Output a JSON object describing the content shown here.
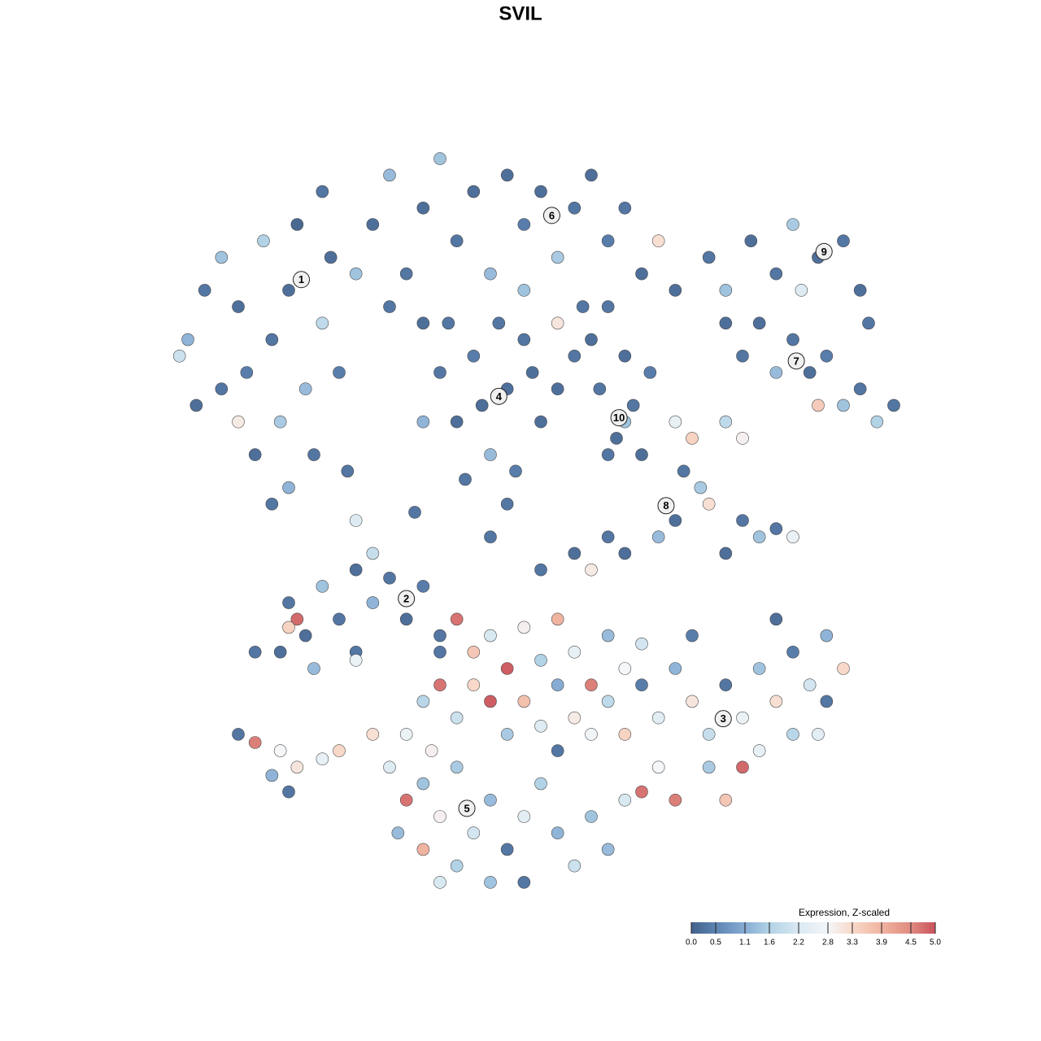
{
  "chart_data": {
    "type": "scatter",
    "title": "SVIL",
    "xlim": [
      -45,
      45
    ],
    "ylim": [
      -45,
      45
    ],
    "x": [
      -42,
      -40,
      -38,
      -36,
      -35,
      -33,
      -32,
      -31,
      -30,
      -29,
      -28,
      -27,
      -26,
      -25,
      -24,
      -23,
      -34,
      -30,
      -38,
      -41,
      -43,
      -26,
      -22,
      -36,
      -32,
      -20,
      -18,
      -16,
      -14,
      -12,
      -10,
      -8,
      -6,
      -4,
      -2,
      0,
      2,
      4,
      6,
      8,
      10,
      12,
      14,
      5,
      -2,
      -14,
      -18,
      2,
      8,
      16,
      -12,
      -10,
      -8,
      -6,
      -4,
      -2,
      0,
      -3,
      -9,
      -14,
      -1,
      -5,
      2,
      -7,
      -11,
      4,
      6,
      -4,
      7,
      9,
      11,
      10,
      13,
      8,
      12,
      10,
      20,
      22,
      25,
      28,
      30,
      33,
      36,
      38,
      39,
      31,
      24,
      26,
      28,
      30,
      32,
      34,
      36,
      38,
      40,
      42,
      33,
      22,
      16,
      18,
      22,
      24,
      17,
      19,
      16,
      20,
      24,
      26,
      28,
      30,
      22,
      14,
      8,
      4,
      0,
      6,
      10,
      -6,
      -30,
      -28,
      -26,
      -24,
      -22,
      -20,
      -18,
      -16,
      -14,
      -12,
      -27,
      -31,
      -22,
      -29,
      -30,
      -22,
      -34,
      -20,
      -10,
      -8,
      -6,
      -4,
      -2,
      0,
      2,
      4,
      6,
      8,
      10,
      -12,
      -10,
      -8,
      -6,
      -4,
      -2,
      0,
      2,
      4,
      6,
      8,
      10,
      12,
      12,
      -12,
      14,
      -14,
      -13,
      16,
      18,
      20,
      22,
      24,
      26,
      28,
      30,
      32,
      34,
      36,
      24,
      26,
      20,
      22,
      14,
      16,
      30,
      34,
      28,
      33,
      18,
      12,
      -18,
      -16,
      -14,
      -12,
      -10,
      -8,
      -6,
      -4,
      -2,
      0,
      2,
      4,
      6,
      -10,
      -14,
      -12,
      -6,
      -2,
      8,
      10,
      -16,
      -20,
      -17,
      2,
      -36,
      -34,
      -31,
      -29,
      -26,
      -32,
      -24,
      -30,
      -22,
      -15
    ],
    "y": [
      22,
      28,
      32,
      26,
      18,
      34,
      22,
      12,
      28,
      36,
      16,
      8,
      24,
      32,
      18,
      6,
      8,
      4,
      16,
      14,
      20,
      40,
      30,
      12,
      2,
      36,
      42,
      30,
      38,
      44,
      34,
      40,
      30,
      42,
      36,
      40,
      32,
      38,
      42,
      34,
      38,
      30,
      34,
      26,
      28,
      24,
      26,
      24,
      26,
      28,
      18,
      12,
      20,
      8,
      16,
      22,
      12,
      6,
      5,
      12,
      18,
      24,
      16,
      14,
      24,
      20,
      22,
      2,
      16,
      10,
      14,
      20,
      18,
      8,
      8,
      12,
      32,
      28,
      34,
      30,
      36,
      32,
      34,
      28,
      24,
      28,
      20,
      24,
      18,
      22,
      18,
      20,
      14,
      16,
      12,
      14,
      14,
      24,
      12,
      10,
      12,
      10,
      6,
      4,
      0,
      2,
      0,
      -2,
      -1,
      -2,
      -4,
      -2,
      -2,
      -4,
      -6,
      -6,
      -4,
      -2,
      -10,
      -14,
      -8,
      -12,
      -6,
      -10,
      -7,
      -12,
      -8,
      -14,
      -18,
      -16,
      -16,
      -12,
      -13,
      -17,
      -16,
      -4,
      -12,
      -16,
      -14,
      -18,
      -13,
      -17,
      -12,
      -16,
      -20,
      -14,
      -18,
      -20,
      -24,
      -20,
      -22,
      -26,
      -22,
      -25,
      -20,
      -24,
      -26,
      -22,
      -26,
      -20,
      -15,
      -16,
      -24,
      -22,
      -28,
      -18,
      -22,
      -26,
      -20,
      -24,
      -18,
      -22,
      -16,
      -20,
      -14,
      -18,
      -30,
      -28,
      -30,
      -34,
      -30,
      -34,
      -26,
      -22,
      -12,
      -26,
      -14,
      -33,
      -30,
      -34,
      -32,
      -36,
      -30,
      -38,
      -34,
      -40,
      -36,
      -32,
      -38,
      -42,
      -36,
      -42,
      -40,
      -44,
      -44,
      -44,
      -40,
      -34,
      -26,
      -26,
      -38,
      -28,
      -26,
      -27,
      -28,
      -30,
      -29,
      -31,
      -28,
      -33,
      0,
      1
    ],
    "values": [
      1.2,
      0.3,
      1.4,
      0.2,
      0.4,
      1.6,
      0.3,
      1.5,
      0.2,
      0.1,
      1.3,
      0.3,
      1.8,
      0.2,
      0.4,
      0.3,
      0.2,
      1.2,
      0.3,
      0.2,
      2.0,
      0.3,
      1.4,
      3.0,
      0.3,
      0.2,
      1.3,
      0.3,
      0.2,
      1.4,
      0.3,
      0.2,
      1.3,
      0.2,
      0.4,
      0.2,
      1.5,
      0.3,
      0.2,
      0.4,
      0.3,
      0.2,
      3.2,
      0.3,
      1.4,
      0.2,
      0.3,
      3.1,
      0.3,
      0.2,
      0.3,
      0.2,
      0.4,
      1.3,
      0.2,
      0.3,
      0.2,
      0.4,
      0.3,
      1.2,
      0.2,
      0.3,
      0.2,
      0.2,
      0.3,
      0.3,
      0.2,
      0.3,
      0.3,
      0.2,
      0.3,
      0.2,
      0.4,
      0.3,
      0.2,
      1.4,
      0.3,
      1.4,
      0.2,
      0.3,
      1.5,
      0.2,
      0.3,
      0.2,
      0.3,
      2.3,
      0.3,
      0.2,
      1.3,
      0.3,
      0.2,
      0.4,
      1.4,
      0.3,
      1.6,
      0.3,
      3.5,
      0.2,
      2.5,
      3.4,
      1.8,
      2.9,
      0.3,
      1.5,
      0.2,
      3.2,
      0.3,
      1.4,
      0.3,
      2.6,
      0.2,
      1.3,
      0.3,
      0.2,
      0.3,
      3.0,
      0.2,
      0.3,
      0.3,
      0.2,
      1.4,
      0.3,
      0.2,
      1.2,
      0.3,
      0.2,
      0.4,
      0.3,
      1.3,
      0.2,
      0.3,
      4.8,
      3.4,
      2.6,
      0.3,
      1.9,
      4.7,
      3.6,
      2.2,
      4.9,
      2.9,
      1.6,
      3.9,
      2.5,
      4.6,
      1.3,
      2.8,
      4.7,
      2.0,
      3.3,
      4.9,
      1.5,
      3.7,
      2.3,
      1.1,
      3.0,
      2.7,
      1.8,
      3.4,
      0.4,
      2.1,
      0.3,
      2.4,
      1.7,
      2.9,
      1.2,
      3.1,
      1.9,
      0.3,
      2.6,
      1.4,
      3.2,
      0.4,
      2.1,
      1.2,
      3.3,
      4.8,
      2.5,
      1.5,
      3.6,
      2.8,
      4.6,
      1.7,
      0.3,
      0.2,
      2.4,
      0.4,
      4.7,
      2.3,
      4.7,
      1.4,
      2.9,
      1.5,
      2.1,
      1.3,
      0.3,
      2.4,
      1.6,
      1.2,
      2.0,
      1.4,
      1.6,
      3.9,
      2.2,
      1.4,
      0.3,
      1.3,
      2.2,
      2.6,
      3.2,
      1.3,
      0.3,
      0.3,
      4.6,
      2.8,
      3.1,
      2.5,
      1.2,
      3.3,
      0.3,
      2.3,
      0.3
    ],
    "annotations": [
      {
        "text": "1",
        "x": -28.5,
        "y": 29.3
      },
      {
        "text": "6",
        "x": 1.3,
        "y": 37.1
      },
      {
        "text": "9",
        "x": 33.7,
        "y": 32.7
      },
      {
        "text": "7",
        "x": 30.4,
        "y": 19.4
      },
      {
        "text": "4",
        "x": -5,
        "y": 15.1
      },
      {
        "text": "10",
        "x": 9.3,
        "y": 12.5
      },
      {
        "text": "8",
        "x": 14.9,
        "y": 1.8
      },
      {
        "text": "2",
        "x": -16,
        "y": -9.5
      },
      {
        "text": "3",
        "x": 21.7,
        "y": -24.1
      },
      {
        "text": "5",
        "x": -8.8,
        "y": -35
      }
    ],
    "colorbar": {
      "title": "Expression, Z-scaled",
      "lim": [
        0,
        5
      ],
      "ticks": [
        {
          "value": 0,
          "label": "0.0"
        },
        0.5,
        1.1,
        1.6,
        2.2,
        2.8,
        3.3,
        3.9,
        4.5,
        {
          "value": 5,
          "label": "5.0"
        }
      ],
      "colors": [
        "#44618a",
        "#5d84b3",
        "#86acd3",
        "#b2d2e6",
        "#d9e9f2",
        "#f4f6f8",
        "#f8d9c9",
        "#f0b3a0",
        "#e08b80",
        "#c9525d"
      ]
    }
  }
}
